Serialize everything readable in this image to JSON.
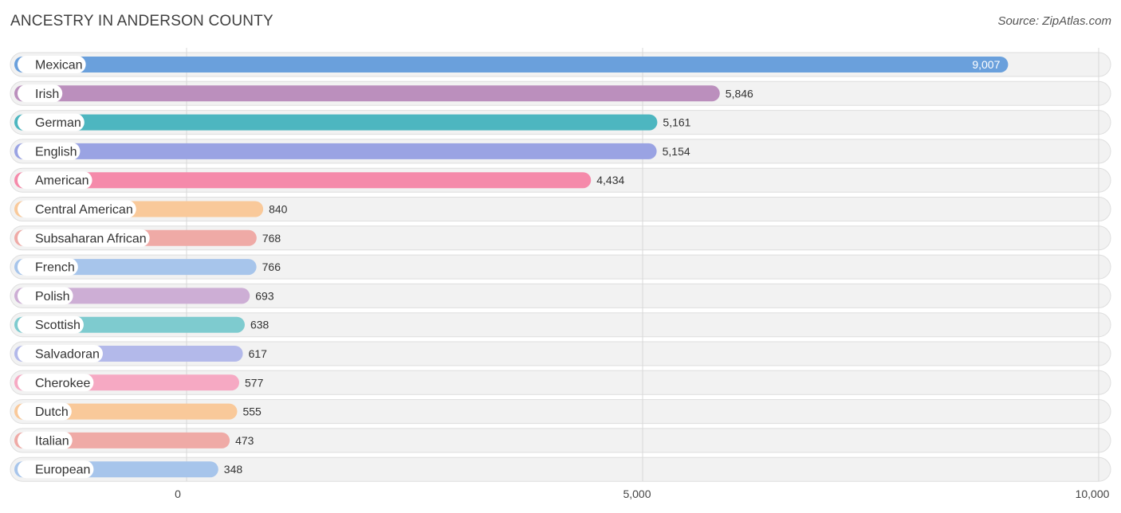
{
  "header": {
    "title": "ANCESTRY IN ANDERSON COUNTY",
    "source": "Source: ZipAtlas.com"
  },
  "chart_data": {
    "type": "bar",
    "orientation": "horizontal",
    "title": "ANCESTRY IN ANDERSON COUNTY",
    "categories": [
      "Mexican",
      "Irish",
      "German",
      "English",
      "American",
      "Central American",
      "Subsaharan African",
      "French",
      "Polish",
      "Scottish",
      "Salvadoran",
      "Cherokee",
      "Dutch",
      "Italian",
      "European"
    ],
    "values": [
      9007,
      5846,
      5161,
      5154,
      4434,
      840,
      768,
      766,
      693,
      638,
      617,
      577,
      555,
      473,
      348
    ],
    "value_labels": [
      "9,007",
      "5,846",
      "5,161",
      "5,154",
      "4,434",
      "840",
      "768",
      "766",
      "693",
      "638",
      "617",
      "577",
      "555",
      "473",
      "348"
    ],
    "colors": [
      "#6aa0dc",
      "#bb8fbd",
      "#4db6c0",
      "#9aa3e3",
      "#f58aaa",
      "#f9c99a",
      "#efaaa6",
      "#a7c5eb",
      "#cdaed5",
      "#7ecbcf",
      "#b3b9ea",
      "#f6a9c3",
      "#f9c99a",
      "#efaaa6",
      "#a7c5eb"
    ],
    "xlim": [
      0,
      10000
    ],
    "x_ticks": [
      0,
      5000,
      10000
    ],
    "x_tick_labels": [
      "0",
      "5,000",
      "10,000"
    ],
    "grid": true
  }
}
